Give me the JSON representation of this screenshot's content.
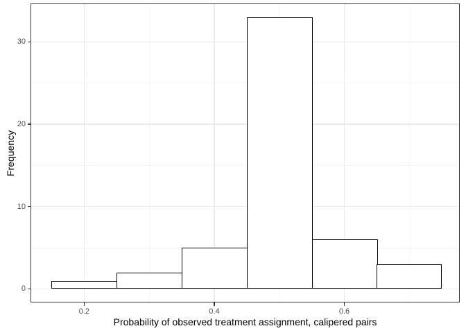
{
  "chart_data": {
    "type": "bar",
    "subtype": "histogram",
    "title": "",
    "xlabel": "Probability of observed treatment assignment, calipered pairs",
    "ylabel": "Frequency",
    "bin_edges": [
      0.15,
      0.25,
      0.35,
      0.45,
      0.55,
      0.65,
      0.75
    ],
    "counts": [
      1,
      2,
      5,
      33,
      6,
      3
    ],
    "x_ticks": [
      0.2,
      0.4,
      0.6
    ],
    "x_tick_labels": [
      "0.2",
      "0.4",
      "0.6"
    ],
    "y_ticks": [
      0,
      10,
      20,
      30
    ],
    "y_tick_labels": [
      "0",
      "10",
      "20",
      "30"
    ],
    "x_minor_gridlines": [
      0.3,
      0.5,
      0.7
    ],
    "y_minor_gridlines": [
      5,
      15,
      25
    ],
    "xlim": [
      0.1175,
      0.7775
    ],
    "ylim": [
      -1.65,
      34.65
    ],
    "grid": "major+minor",
    "legend_position": "none",
    "colors": {
      "bar_fill": "#ffffff",
      "bar_stroke": "#000000",
      "panel_border": "#333333",
      "grid_major": "#ebebeb",
      "grid_minor": "#f4f4f4",
      "tick_mark": "#333333",
      "tick_label": "#4d4d4d",
      "axis_title": "#000000",
      "background": "#ffffff"
    }
  }
}
